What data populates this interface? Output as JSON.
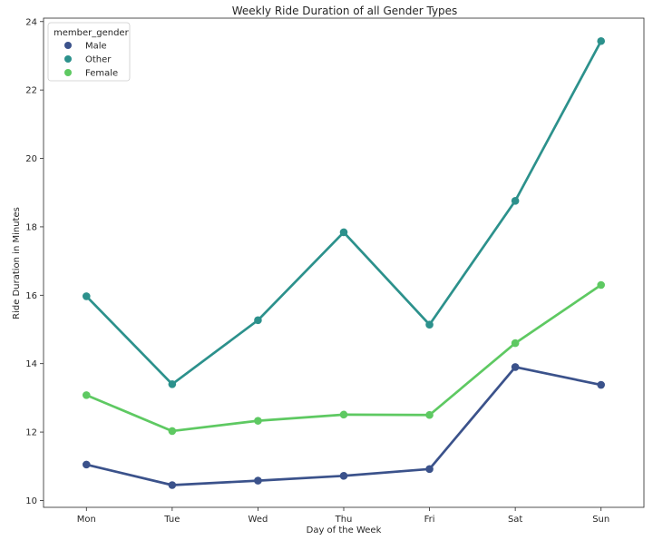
{
  "chart_data": {
    "type": "line",
    "title": "Weekly Ride Duration of all Gender Types",
    "xlabel": "Day of the Week",
    "ylabel": "Ride Duration in Minutes",
    "categories": [
      "Mon",
      "Tue",
      "Wed",
      "Thu",
      "Fri",
      "Sat",
      "Sun"
    ],
    "ylim": [
      9.8,
      24.1
    ],
    "yticks": [
      10,
      12,
      14,
      16,
      18,
      20,
      22,
      24
    ],
    "grid": false,
    "legend": {
      "title": "member_gender",
      "placement": "top-left"
    },
    "series": [
      {
        "name": "Male",
        "color": "#3b528b",
        "values": [
          11.05,
          10.45,
          10.58,
          10.72,
          10.92,
          13.9,
          13.38
        ]
      },
      {
        "name": "Other",
        "color": "#2c918c",
        "values": [
          15.97,
          13.4,
          15.27,
          17.84,
          15.14,
          18.76,
          23.43
        ]
      },
      {
        "name": "Female",
        "color": "#5ec962",
        "values": [
          13.08,
          12.03,
          12.33,
          12.51,
          12.5,
          14.6,
          16.3
        ]
      }
    ]
  }
}
